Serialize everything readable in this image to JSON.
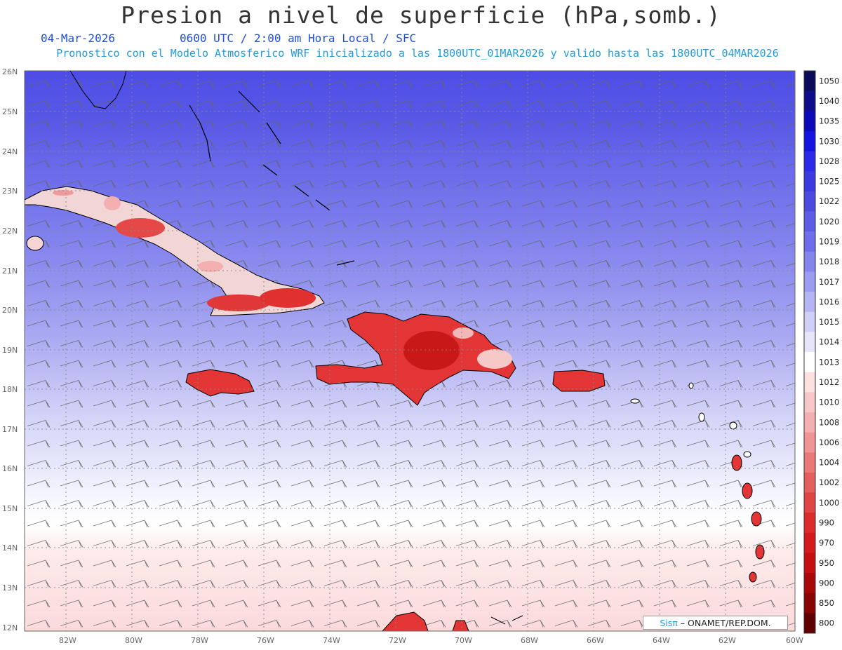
{
  "title": "Presion a nivel de superficie (hPa,somb.)",
  "date": "04-Mar-2026",
  "time_line": "0600 UTC / 2:00 am Hora Local / SFC",
  "forecast_line": "Pronostico con el Modelo Atmosferico WRF inicializado a las 1800UTC_01MAR2026 y valido hasta las  1800UTC_04MAR2026",
  "credit": {
    "logo": "Sisπ",
    "text": "– ONAMET/REP.DOM."
  },
  "lat_labels": [
    "26N",
    "25N",
    "24N",
    "23N",
    "22N",
    "21N",
    "20N",
    "19N",
    "18N",
    "17N",
    "16N",
    "15N",
    "14N",
    "13N",
    "12N"
  ],
  "lon_labels": [
    "82W",
    "80W",
    "78W",
    "76W",
    "74W",
    "72W",
    "70W",
    "68W",
    "66W",
    "64W",
    "62W",
    "60W"
  ],
  "colorbar": {
    "levels": [
      "1050",
      "1040",
      "1035",
      "1030",
      "1028",
      "1025",
      "1022",
      "1020",
      "1019",
      "1018",
      "1017",
      "1016",
      "1015",
      "1014",
      "1013",
      "1012",
      "1010",
      "1008",
      "1006",
      "1004",
      "1002",
      "1000",
      "990",
      "970",
      "950",
      "900",
      "850",
      "800"
    ],
    "colors": [
      "#0b0b5a",
      "#0d0d8a",
      "#0a0ab8",
      "#1414e0",
      "#2a2ae8",
      "#3a3ae0",
      "#4b4be0",
      "#5c5ce6",
      "#6e6eea",
      "#8585ee",
      "#9c9cf2",
      "#b5b5f5",
      "#cfcff8",
      "#e6e6fb",
      "#ffffff",
      "#fde0e0",
      "#f8c8c8",
      "#f4b0b0",
      "#ef9595",
      "#ea7a7a",
      "#e55f5f",
      "#e04545",
      "#dc2b2b",
      "#d41a1a",
      "#c41010",
      "#a80808",
      "#8a0404",
      "#600000"
    ]
  },
  "wind_barbs": "present"
}
